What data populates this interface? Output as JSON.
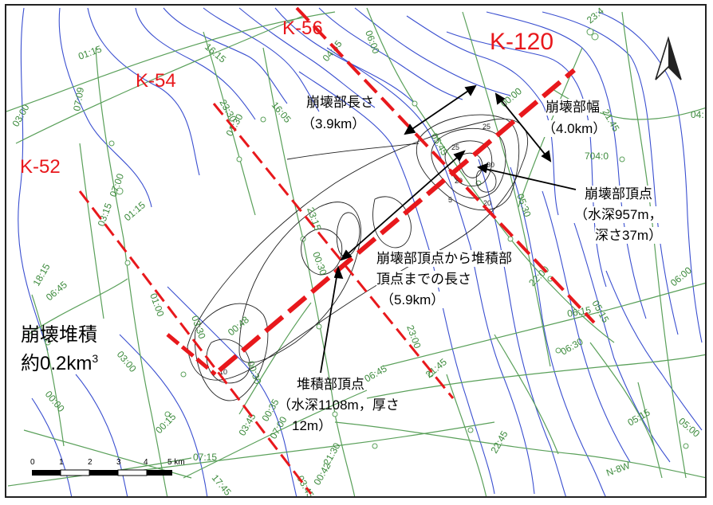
{
  "survey_lines": {
    "k120": "K-120",
    "k56": "K-56",
    "k54": "K-54",
    "k52": "K-52"
  },
  "annotations": {
    "collapse_length_title": "崩壊部長さ",
    "collapse_length_value": "（3.9km）",
    "collapse_width_title": "崩壊部幅",
    "collapse_width_value": "（4.0km）",
    "collapse_top_title": "崩壊部頂点",
    "collapse_top_line2": "（水深957m，",
    "collapse_top_line3": "深さ37m）",
    "top_to_deposit_line1": "崩壊部頂点から堆積部",
    "top_to_deposit_line2": "頂点までの長さ",
    "top_to_deposit_line3": "（5.9km）",
    "deposit_top_line1": "堆積部頂点",
    "deposit_top_line2": "（水深1108m，厚さ",
    "deposit_top_line3": "12m）",
    "volume_line1": "崩壊堆積",
    "volume_line2": "約0.2km",
    "volume_sup": "3"
  },
  "track_times": [
    "01:15",
    "07:09",
    "03:00",
    "07:00",
    "03:15",
    "01:15",
    "18:15",
    "06:45",
    "16:15",
    "23:30",
    "01:30",
    "16:05",
    "04:45",
    "06:00",
    "00:00",
    "21:45",
    "23:4",
    "04:",
    "704:0",
    "05:45",
    "23:15",
    "00:30",
    "05:30",
    "22:00",
    "06:00",
    "05:15",
    "06:15",
    "06:30",
    "23:00",
    "21:45",
    "06:45",
    "03:30",
    "00:30",
    "01:00",
    "03:45",
    "00:15",
    "00:35",
    "07:00",
    "21:30",
    "00:42",
    "07:15",
    "22:45",
    "05:15",
    "05:00",
    "00:00",
    "03:00",
    "03:45",
    "17:45",
    "00:48",
    "N-8W"
  ],
  "depth_labels": [
    "25",
    "25",
    "30",
    "20",
    "20",
    "5",
    "10"
  ],
  "scale": {
    "ticks": [
      "0",
      "1",
      "2",
      "3",
      "4",
      "5 km"
    ]
  },
  "north_arrow": "north"
}
